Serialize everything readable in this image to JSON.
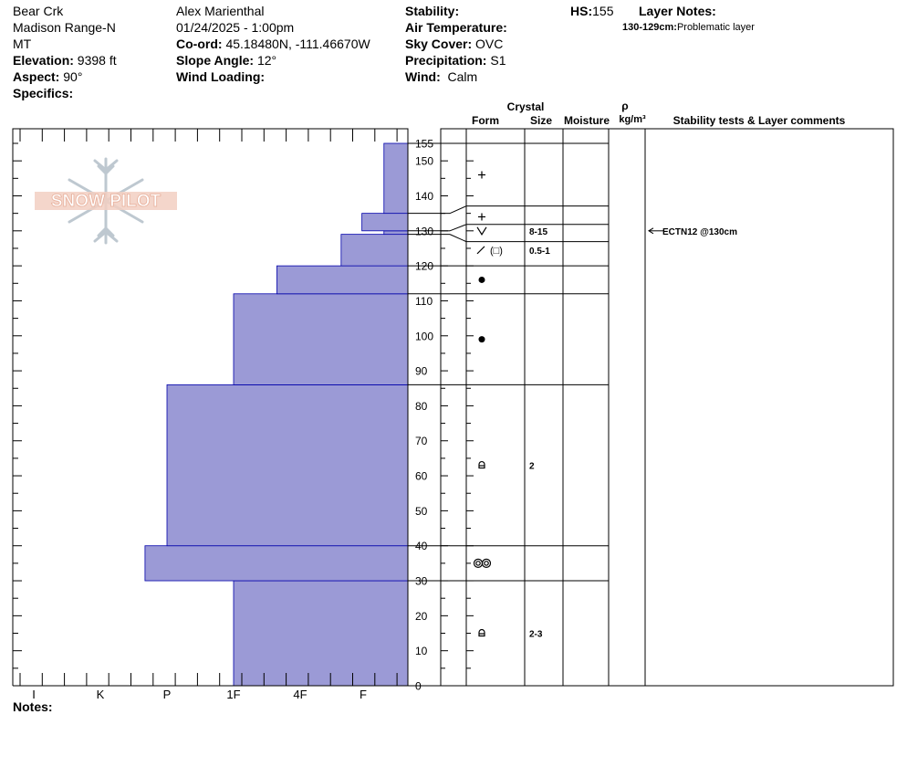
{
  "header": {
    "col1": {
      "location": "Bear Crk",
      "range": "Madison Range-N",
      "state": "MT",
      "elevation_label": "Elevation:",
      "elevation": "9398 ft",
      "aspect_label": "Aspect:",
      "aspect": "90°",
      "specifics_label": "Specifics:",
      "specifics": ""
    },
    "col2": {
      "observer": "Alex Marienthal",
      "datetime": "01/24/2025 - 1:00pm",
      "coord_label": "Co-ord:",
      "coord": "45.18480N, -111.46670W",
      "slope_label": "Slope Angle:",
      "slope": "12°",
      "wind_loading_label": "Wind Loading:",
      "wind_loading": ""
    },
    "col3": {
      "stability_label": "Stability:",
      "stability": "",
      "air_temp_label": "Air Temperature:",
      "air_temp": "",
      "sky_label": "Sky Cover:",
      "sky": "OVC",
      "precip_label": "Precipitation:",
      "precip": "S1",
      "wind_label": "Wind:",
      "wind": "Calm"
    },
    "col4": {
      "hs_label": "HS:",
      "hs": "155",
      "layer_notes_label": "Layer Notes:",
      "layer_note_range": "130-129cm:",
      "layer_note_text": "Problematic layer"
    }
  },
  "logo_text": "SNOW PILOT",
  "notes_label": "Notes:",
  "columns": {
    "crystal": "Crystal",
    "form": "Form",
    "size": "Size",
    "moisture": "Moisture",
    "rho": "ρ",
    "density_unit": "kg/m³",
    "stability_comments": "Stability tests & Layer comments"
  },
  "colors": {
    "hardness_fill": "#9b9ad6",
    "hardness_edge": "#0000aa",
    "text": "#000000"
  },
  "chart_data": {
    "type": "snow-profile",
    "ylabel": "",
    "ylim": [
      0,
      155
    ],
    "y_ticks": [
      0,
      10,
      20,
      30,
      40,
      50,
      60,
      70,
      80,
      90,
      100,
      110,
      120,
      130,
      140,
      150,
      155
    ],
    "hardness_scale": [
      "I",
      "K",
      "P",
      "1F",
      "4F",
      "F"
    ],
    "hardness_layers": [
      {
        "bottom": 0,
        "top": 30,
        "hardness_index": 3.0
      },
      {
        "bottom": 30,
        "top": 40,
        "hardness_index": 1.67
      },
      {
        "bottom": 40,
        "top": 86,
        "hardness_index": 2.0
      },
      {
        "bottom": 86,
        "top": 112,
        "hardness_index": 3.0
      },
      {
        "bottom": 112,
        "top": 120,
        "hardness_index": 3.65
      },
      {
        "bottom": 120,
        "top": 129,
        "hardness_index": 4.65
      },
      {
        "bottom": 129,
        "top": 130,
        "hardness_index": 5.33
      },
      {
        "bottom": 130,
        "top": 135,
        "hardness_index": 4.98
      },
      {
        "bottom": 135,
        "top": 155,
        "hardness_index": 5.33
      }
    ],
    "layer_boundaries": [
      0,
      30,
      40,
      86,
      112,
      120,
      129,
      130,
      135,
      155
    ],
    "layers": [
      {
        "bottom": 0,
        "top": 30,
        "form": "rounding-facets",
        "size": "2-3",
        "y_symbol": 15
      },
      {
        "bottom": 30,
        "top": 40,
        "form": "melt-forms",
        "size": "",
        "y_symbol": 35
      },
      {
        "bottom": 40,
        "top": 86,
        "form": "rounding-facets",
        "size": "2",
        "y_symbol": 63
      },
      {
        "bottom": 86,
        "top": 112,
        "form": "rounds",
        "size": "",
        "y_symbol": 99
      },
      {
        "bottom": 112,
        "top": 120,
        "form": "rounds",
        "size": "",
        "y_symbol": 116
      },
      {
        "bottom": 120,
        "top": 129,
        "form": "decomposing-facets",
        "size": "0.5-1",
        "y_symbol": 124.5
      },
      {
        "bottom": 129,
        "top": 130,
        "form": "surface-hoar",
        "size": "8-15",
        "y_symbol": 130
      },
      {
        "bottom": 130,
        "top": 135,
        "form": "precip-particles",
        "size": "",
        "y_symbol": 134
      },
      {
        "bottom": 135,
        "top": 155,
        "form": "precip-particles",
        "size": "",
        "y_symbol": 146
      }
    ],
    "stability_tests": [
      {
        "text": "ECTN12 @130cm",
        "depth": 130
      }
    ]
  }
}
